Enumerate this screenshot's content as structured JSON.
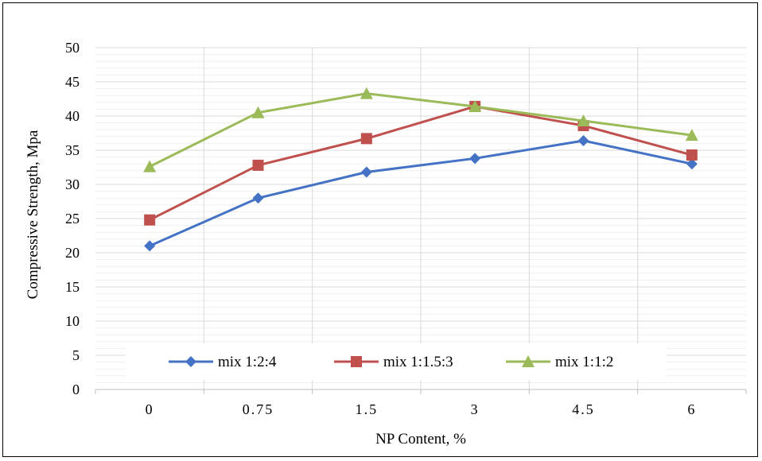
{
  "chart_data": {
    "type": "line",
    "title": "",
    "xlabel": "NP Content, %",
    "ylabel": "Compressive Strength, Mpa",
    "categories": [
      "0",
      "0.75",
      "1.5",
      "3",
      "4.5",
      "6"
    ],
    "ylim": [
      0,
      50
    ],
    "yticks": [
      "0",
      "5",
      "10",
      "15",
      "20",
      "25",
      "30",
      "35",
      "40",
      "45",
      "50"
    ],
    "grid": "on",
    "legend_position": "bottom-inside",
    "series": [
      {
        "name": "mix 1:2:4",
        "color": "#4472C4",
        "marker": "diamond",
        "values": [
          21,
          28,
          31.8,
          33.8,
          36.4,
          33
        ]
      },
      {
        "name": "mix 1:1.5:3",
        "color": "#C0504D",
        "marker": "square",
        "values": [
          24.8,
          32.8,
          36.7,
          41.4,
          38.6,
          34.3
        ]
      },
      {
        "name": "mix 1:1:2",
        "color": "#9BBB59",
        "marker": "triangle",
        "values": [
          32.6,
          40.5,
          43.3,
          41.4,
          39.3,
          37.2
        ]
      }
    ]
  }
}
